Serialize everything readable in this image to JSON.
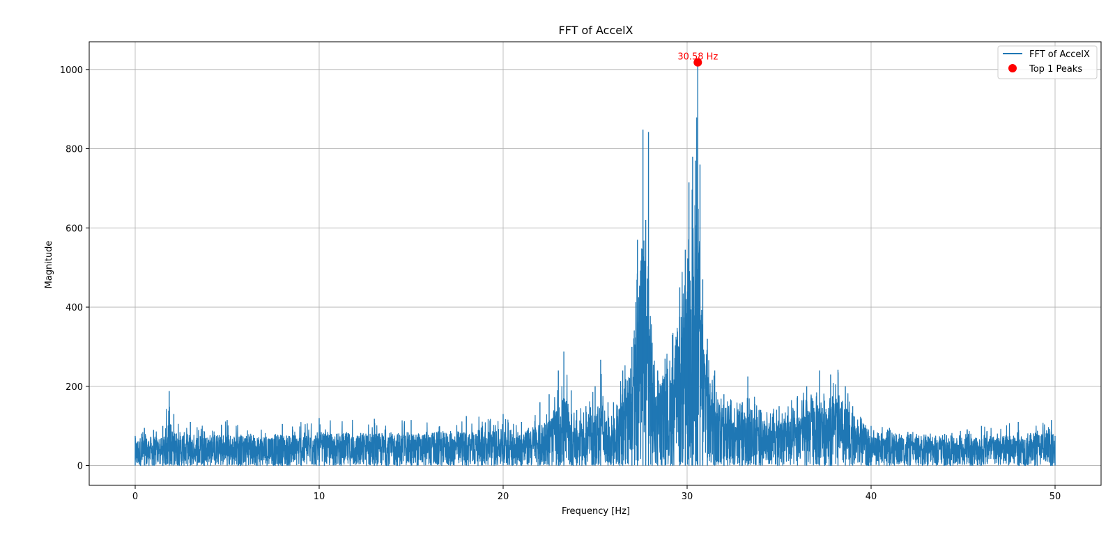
{
  "chart_data": {
    "type": "line",
    "title": "FFT of AccelX",
    "xlabel": "Frequency [Hz]",
    "ylabel": "Magnitude",
    "xlim": [
      -2.5,
      52.5
    ],
    "ylim": [
      -50,
      1070
    ],
    "x_ticks": [
      0,
      10,
      20,
      30,
      40,
      50
    ],
    "y_ticks": [
      0,
      200,
      400,
      600,
      800,
      1000
    ],
    "grid": true,
    "legend_position": "top-right",
    "series": [
      {
        "name": "FFT of AccelX",
        "color": "#1f77b4",
        "envelope_x": [
          0,
          0.5,
          1,
          1.5,
          1.85,
          2.1,
          3,
          5,
          8,
          10,
          13,
          15,
          18,
          20,
          21,
          22,
          22.5,
          23,
          23.3,
          23.7,
          24,
          24.5,
          25,
          25.3,
          25.7,
          26,
          26.5,
          27,
          27.3,
          27.6,
          27.75,
          27.9,
          28.1,
          28.4,
          28.8,
          29.2,
          29.6,
          29.9,
          30.1,
          30.3,
          30.45,
          30.58,
          30.7,
          30.85,
          31.1,
          31.5,
          32,
          33,
          33.3,
          34,
          35,
          36,
          36.5,
          37.2,
          37.8,
          38.2,
          38.6,
          39,
          40,
          41,
          42,
          44,
          46,
          48,
          49.8,
          50
        ],
        "envelope_max": [
          75,
          95,
          90,
          100,
          188,
          130,
          110,
          115,
          105,
          120,
          118,
          115,
          125,
          130,
          110,
          160,
          180,
          240,
          288,
          190,
          140,
          150,
          200,
          267,
          160,
          160,
          240,
          300,
          570,
          848,
          620,
          842,
          310,
          240,
          270,
          330,
          450,
          545,
          715,
          780,
          770,
          1018,
          760,
          470,
          320,
          240,
          180,
          160,
          225,
          140,
          150,
          175,
          200,
          240,
          230,
          242,
          200,
          150,
          100,
          95,
          85,
          80,
          100,
          110,
          115,
          75
        ],
        "envelope_mean": [
          35,
          38,
          36,
          38,
          60,
          45,
          40,
          40,
          40,
          42,
          42,
          42,
          44,
          46,
          45,
          55,
          60,
          75,
          90,
          70,
          55,
          60,
          70,
          80,
          62,
          65,
          95,
          130,
          230,
          310,
          250,
          300,
          150,
          110,
          120,
          150,
          190,
          240,
          300,
          340,
          330,
          360,
          290,
          200,
          140,
          110,
          85,
          80,
          90,
          70,
          70,
          75,
          85,
          95,
          90,
          92,
          80,
          65,
          45,
          42,
          40,
          38,
          40,
          42,
          44,
          35
        ]
      }
    ],
    "peaks": {
      "label": "Top 1 Peaks",
      "color": "#ff0000",
      "points": [
        {
          "x": 30.58,
          "y": 1018,
          "annotation": "30.58 Hz"
        }
      ]
    }
  }
}
